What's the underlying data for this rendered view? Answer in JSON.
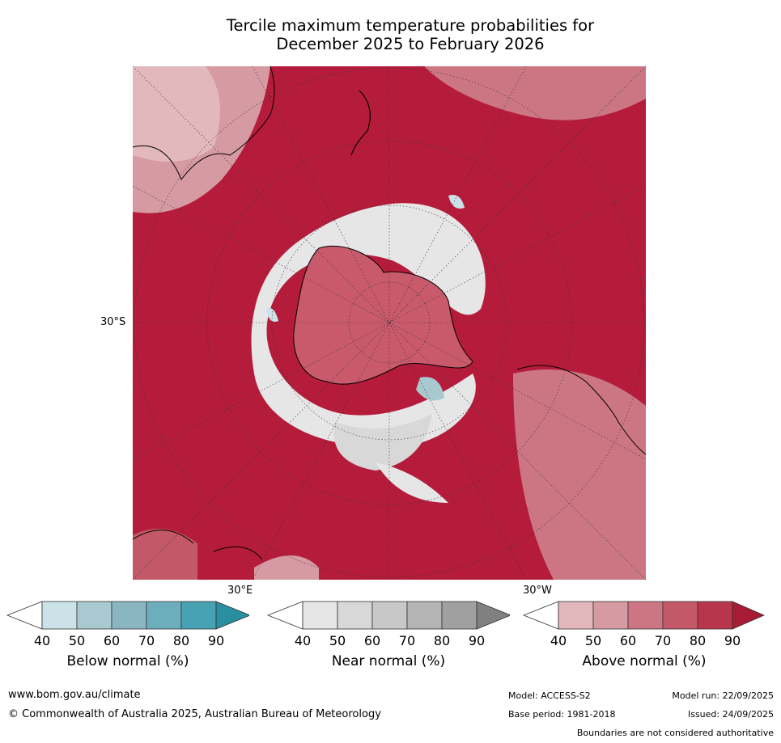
{
  "title": {
    "line1": "Tercile maximum temperature probabilities for",
    "line2": "December 2025 to February 2026"
  },
  "map": {
    "projection": "south-polar stereographic",
    "region": "Southern Hemisphere",
    "lat_label": "30°S",
    "lon_label_east": "30°E",
    "lon_label_west": "30°W",
    "dominant_color": "#b51c3b",
    "ocean_above_normal_color": "#b51c3b",
    "antarctica_color": "#c85a6c",
    "near_normal_ring_color": "#e6e6e6",
    "below_normal_patch_color": "#a9c8d2",
    "coastline_color": "#000000"
  },
  "colorbars": [
    {
      "label": "Below normal (%)",
      "ticks": [
        "40",
        "50",
        "60",
        "70",
        "80",
        "90"
      ],
      "colors": [
        "#ffffff",
        "#cbe2e8",
        "#a7c9cf",
        "#8ab6c2",
        "#6daebc",
        "#47a3b3",
        "#2a8ea1"
      ]
    },
    {
      "label": "Near normal (%)",
      "ticks": [
        "40",
        "50",
        "60",
        "70",
        "80",
        "90"
      ],
      "colors": [
        "#ffffff",
        "#e6e6e6",
        "#d8d8d8",
        "#c8c8c8",
        "#b4b4b4",
        "#a0a0a0",
        "#808080"
      ]
    },
    {
      "label": "Above normal (%)",
      "ticks": [
        "40",
        "50",
        "60",
        "70",
        "80",
        "90"
      ],
      "colors": [
        "#ffffff",
        "#e2b8bd",
        "#d69aa3",
        "#cc7683",
        "#c35868",
        "#b8364c",
        "#a81b34"
      ]
    }
  ],
  "footer": {
    "url": "www.bom.gov.au/climate",
    "copyright": "© Commonwealth of Australia 2025, Australian Bureau of Meteorology",
    "model": "Model: ACCESS-S2",
    "base_period": "Base period: 1981-2018",
    "model_run": "Model run: 22/09/2025",
    "issued": "Issued: 24/09/2025",
    "boundaries": "Boundaries are not considered authoritative"
  }
}
